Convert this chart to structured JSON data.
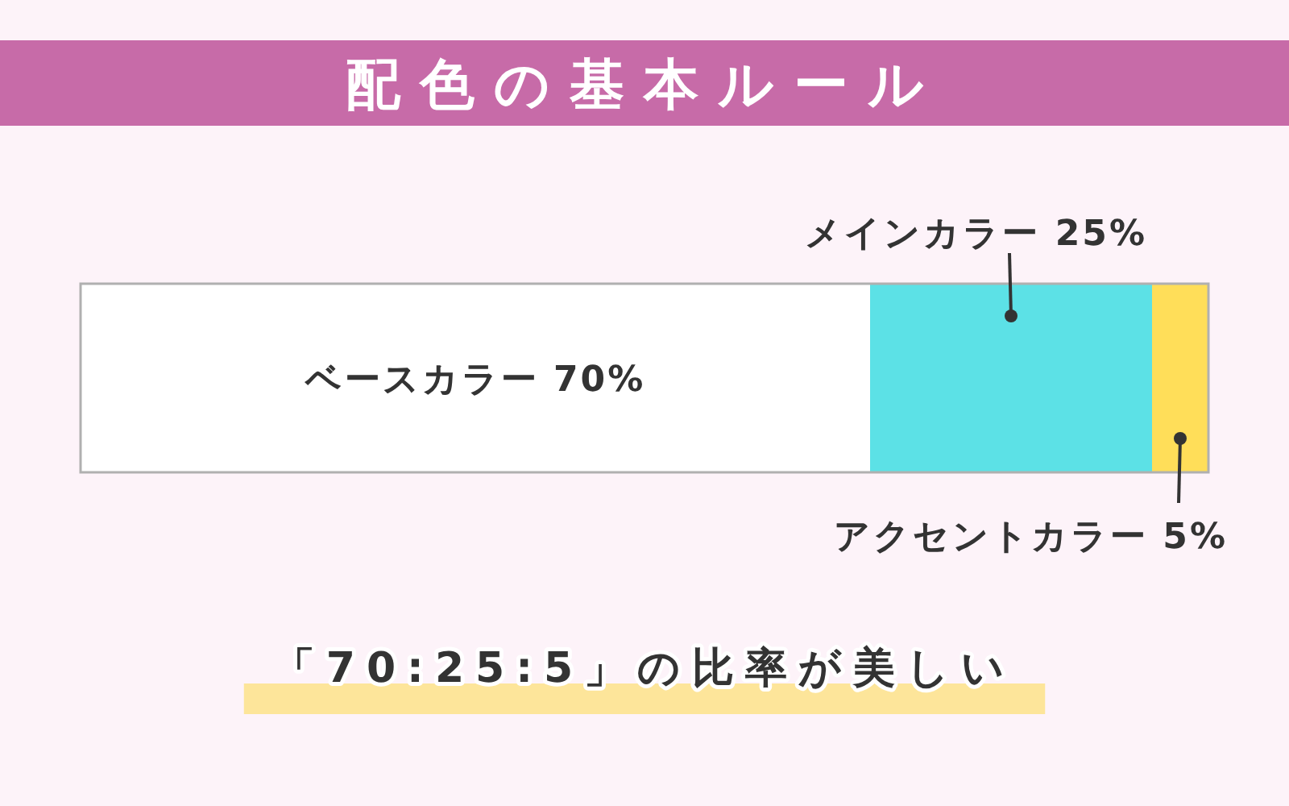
{
  "chart_data": {
    "type": "bar",
    "title": "配色の基本ルール",
    "orientation": "horizontal",
    "stacked": true,
    "categories": [
      null
    ],
    "xlim": [
      0,
      100
    ],
    "series": [
      {
        "name": "ベースカラー",
        "color": "#ffffff",
        "values": [
          70
        ],
        "value_labels": [
          "70%"
        ]
      },
      {
        "name": "メインカラー",
        "color": "#5ce1e6",
        "values": [
          25
        ],
        "value_labels": [
          "25%"
        ]
      },
      {
        "name": "アクセントカラー",
        "color": "#ffde59",
        "values": [
          5
        ],
        "value_labels": [
          "5%"
        ]
      }
    ],
    "annotations": [
      "「70:25:5」の比率が美しい"
    ]
  }
}
